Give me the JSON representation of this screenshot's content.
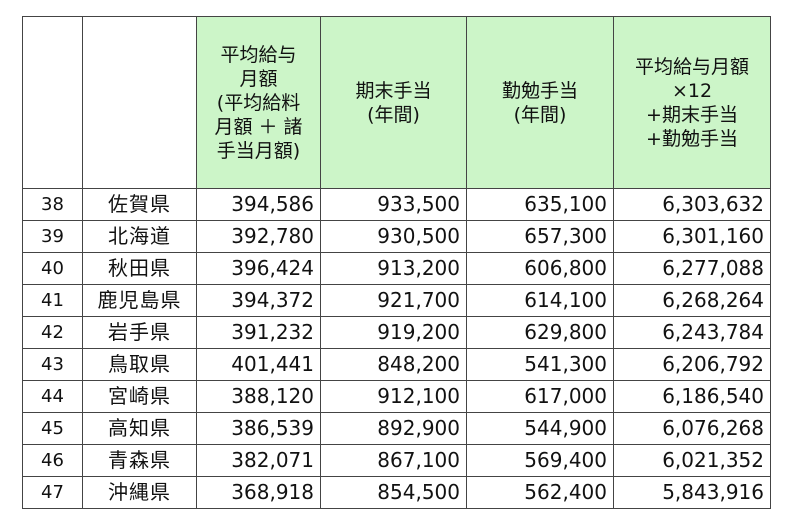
{
  "table": {
    "headers": {
      "rank": "",
      "prefecture": "",
      "avg_monthly": "平均給与\n月額\n(平均給料\n月額 ＋ 諸\n手当月額)",
      "term_end": "期末手当\n(年間)",
      "diligence": "勤勉手当\n(年間)",
      "annual_total": "平均給与月額\n×12\n+期末手当\n+勤勉手当"
    },
    "rows": [
      {
        "rank": "38",
        "prefecture": "佐賀県",
        "avg_monthly": "394,586",
        "term_end": "933,500",
        "diligence": "635,100",
        "annual_total": "6,303,632"
      },
      {
        "rank": "39",
        "prefecture": "北海道",
        "avg_monthly": "392,780",
        "term_end": "930,500",
        "diligence": "657,300",
        "annual_total": "6,301,160"
      },
      {
        "rank": "40",
        "prefecture": "秋田県",
        "avg_monthly": "396,424",
        "term_end": "913,200",
        "diligence": "606,800",
        "annual_total": "6,277,088"
      },
      {
        "rank": "41",
        "prefecture": "鹿児島県",
        "avg_monthly": "394,372",
        "term_end": "921,700",
        "diligence": "614,100",
        "annual_total": "6,268,264"
      },
      {
        "rank": "42",
        "prefecture": "岩手県",
        "avg_monthly": "391,232",
        "term_end": "919,200",
        "diligence": "629,800",
        "annual_total": "6,243,784"
      },
      {
        "rank": "43",
        "prefecture": "鳥取県",
        "avg_monthly": "401,441",
        "term_end": "848,200",
        "diligence": "541,300",
        "annual_total": "6,206,792"
      },
      {
        "rank": "44",
        "prefecture": "宮崎県",
        "avg_monthly": "388,120",
        "term_end": "912,100",
        "diligence": "617,000",
        "annual_total": "6,186,540"
      },
      {
        "rank": "45",
        "prefecture": "高知県",
        "avg_monthly": "386,539",
        "term_end": "892,900",
        "diligence": "544,900",
        "annual_total": "6,076,268"
      },
      {
        "rank": "46",
        "prefecture": "青森県",
        "avg_monthly": "382,071",
        "term_end": "867,100",
        "diligence": "569,400",
        "annual_total": "6,021,352"
      },
      {
        "rank": "47",
        "prefecture": "沖縄県",
        "avg_monthly": "368,918",
        "term_end": "854,500",
        "diligence": "562,400",
        "annual_total": "5,843,916"
      }
    ]
  },
  "colors": {
    "header_bg": "#ccf5c8",
    "grid": "#444444"
  }
}
